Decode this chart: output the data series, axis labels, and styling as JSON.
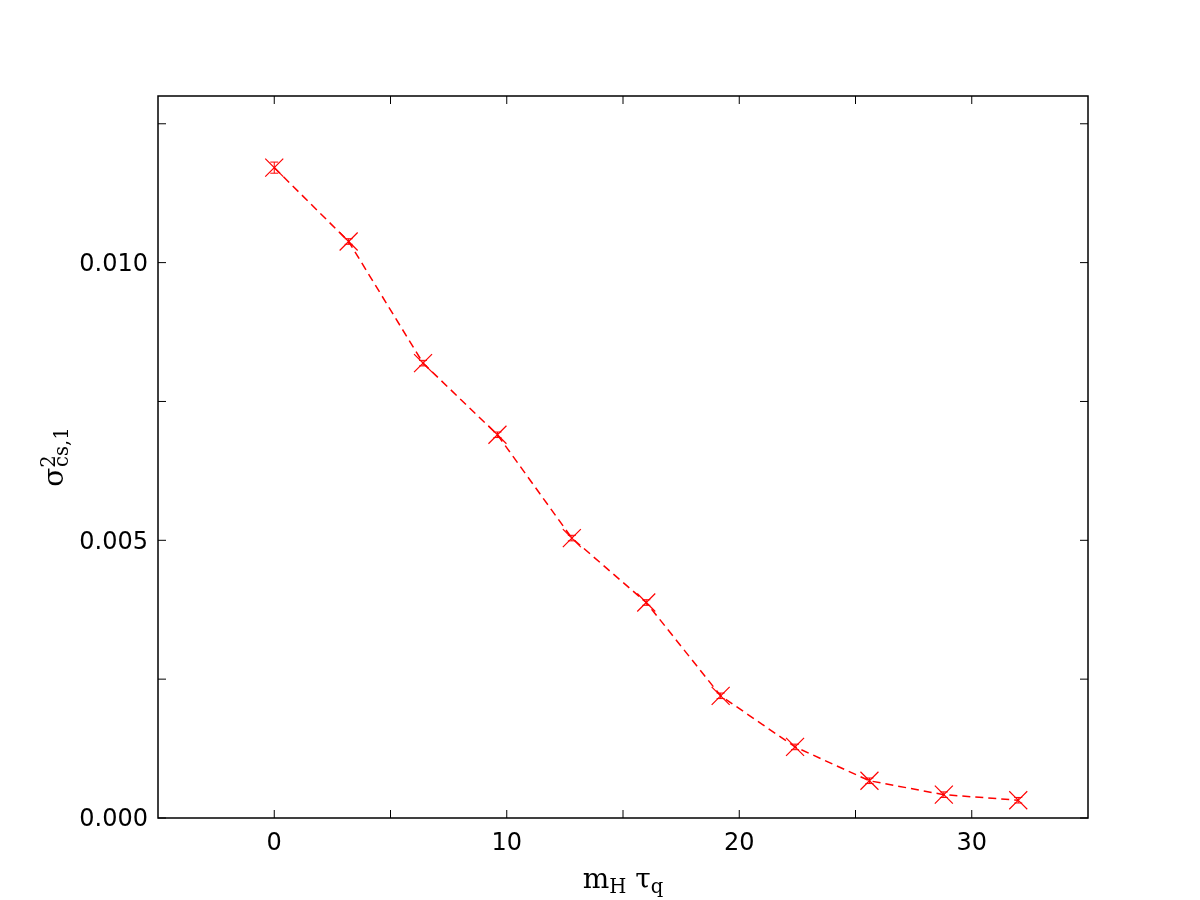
{
  "chart_data": {
    "type": "line",
    "xlabel": "m$_{H}$ τ$_{q}$",
    "ylabel": "σ$^{2}$$_{cs,1}$",
    "x": [
      0,
      3.2,
      6.4,
      9.6,
      12.8,
      16,
      19.2,
      22.4,
      25.6,
      28.8,
      32
    ],
    "series": [
      {
        "color": "#ff0000",
        "values": [
          0.01171,
          0.01038,
          0.00819,
          0.0069,
          0.00504,
          0.00388,
          0.0022,
          0.00128,
          0.00067,
          0.00042,
          0.00032
        ],
        "errors": [
          0.0001,
          5e-05,
          5e-05,
          5e-05,
          5e-05,
          5e-05,
          5e-05,
          5e-05,
          5e-05,
          5e-05,
          5e-05
        ]
      }
    ],
    "xlim": [
      -5,
      35
    ],
    "xticks": [
      0,
      {
        "value": 5,
        "label": null
      },
      10,
      {
        "value": 15,
        "label": null
      },
      20,
      {
        "value": 25,
        "label": null
      },
      30
    ],
    "ylim": [
      0,
      0.013
    ],
    "yticks": [
      {
        "value": 0,
        "label": "0.000"
      },
      {
        "value": 0.0025,
        "label": null
      },
      {
        "value": 0.005,
        "label": "0.005"
      },
      {
        "value": 0.0075,
        "label": null
      },
      {
        "value": 0.01,
        "label": "0.010"
      },
      {
        "value": 0.0125,
        "label": null
      }
    ],
    "marker": "cross",
    "line_style": "dashed",
    "grid": false
  }
}
